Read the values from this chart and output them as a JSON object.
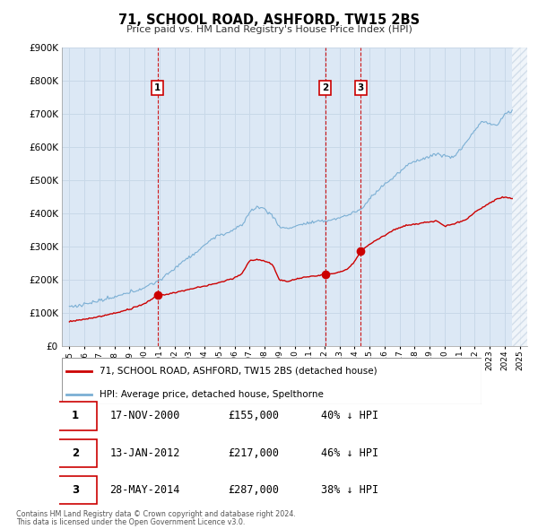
{
  "title": "71, SCHOOL ROAD, ASHFORD, TW15 2BS",
  "subtitle": "Price paid vs. HM Land Registry's House Price Index (HPI)",
  "legend_entry1": "71, SCHOOL ROAD, ASHFORD, TW15 2BS (detached house)",
  "legend_entry2": "HPI: Average price, detached house, Spelthorne",
  "footer1": "Contains HM Land Registry data © Crown copyright and database right 2024.",
  "footer2": "This data is licensed under the Open Government Licence v3.0.",
  "transactions": [
    {
      "label": "1",
      "date": "17-NOV-2000",
      "price": 155000,
      "pct": "40%",
      "x_year": 2000.88
    },
    {
      "label": "2",
      "date": "13-JAN-2012",
      "price": 217000,
      "pct": "46%",
      "x_year": 2012.04
    },
    {
      "label": "3",
      "date": "28-MAY-2014",
      "price": 287000,
      "pct": "38%",
      "x_year": 2014.41
    }
  ],
  "red_color": "#cc0000",
  "blue_color": "#7bafd4",
  "background_color": "#dce8f5",
  "grid_color": "#c8d8e8",
  "hatch_color": "#c0cfe0",
  "ylim": [
    0,
    900000
  ],
  "yticks": [
    0,
    100000,
    200000,
    300000,
    400000,
    500000,
    600000,
    700000,
    800000,
    900000
  ],
  "xlim_start": 1994.5,
  "xlim_end": 2025.5,
  "hatch_start": 2024.5,
  "xtick_years": [
    1995,
    1996,
    1997,
    1998,
    1999,
    2000,
    2001,
    2002,
    2003,
    2004,
    2005,
    2006,
    2007,
    2008,
    2009,
    2010,
    2011,
    2012,
    2013,
    2014,
    2015,
    2016,
    2017,
    2018,
    2019,
    2020,
    2021,
    2022,
    2023,
    2024,
    2025
  ]
}
